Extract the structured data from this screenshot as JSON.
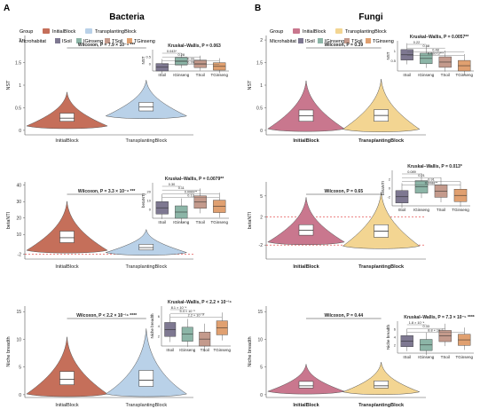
{
  "panels": [
    {
      "letter": "A",
      "title": "Bacteria",
      "legend": {
        "group_title": "Group",
        "groups": [
          "InitialBlock",
          "TransplantingBlock"
        ],
        "micro_title": "Microhabitat",
        "micro": [
          "ISoil",
          "IGinseng",
          "TSoil",
          "TGinseng"
        ]
      }
    },
    {
      "letter": "B",
      "title": "Fungi",
      "legend": {
        "group_title": "Group",
        "groups": [
          "InitialBlock",
          "TransplantingBlock"
        ],
        "micro_title": "Microhabitat",
        "micro": [
          "ISoil",
          "IGinseng",
          "TSoil",
          "TGinseng"
        ]
      }
    }
  ],
  "colors": {
    "bac_initial": "#c56f5a",
    "bac_trans": "#b9d1e8",
    "fun_initial": "#c9778e",
    "fun_trans": "#f3d592",
    "isoil": "#7e7891",
    "iginseng": "#8cb5a7",
    "tsoil": "#c49a8c",
    "tginseng": "#e0a070",
    "ref_line": "#e23b3b"
  },
  "chart_data": [
    {
      "type": "violin",
      "panel": "Bacteria",
      "ylabel": "NST",
      "categories": [
        "InitialBlock",
        "TransplantingBlock"
      ],
      "yticks": [
        0.0,
        0.5,
        1.0,
        1.5,
        2.0
      ],
      "ylim": [
        -0.1,
        2.1
      ],
      "medians": [
        0.27,
        0.52
      ],
      "box_q1": [
        0.2,
        0.43
      ],
      "box_q3": [
        0.38,
        0.62
      ],
      "test": "Wilcoxon, P = 7.9 × 10⁻⁴ ***",
      "inset": {
        "type": "box",
        "ylabel": "NST",
        "test": "Kruskal–Wallis, P = 0.063",
        "categories": [
          "ISoil",
          "IGinseng",
          "TSoil",
          "TGinseng"
        ],
        "yticks": [
          0.0,
          0.5
        ],
        "medians": [
          0.3,
          0.38,
          0.55,
          0.48
        ],
        "pairs": [
          "0.043*",
          "0.28",
          "0.33",
          "0.39"
        ]
      }
    },
    {
      "type": "violin",
      "panel": "Bacteria",
      "ylabel": "betaNTI",
      "categories": [
        "InitialBlock",
        "TransplantingBlock"
      ],
      "yticks": [
        -2,
        10,
        20,
        30,
        40
      ],
      "ylim": [
        -5,
        42
      ],
      "medians": [
        8,
        2
      ],
      "box_q1": [
        5,
        0.5
      ],
      "box_q3": [
        12,
        4
      ],
      "ref_line": -2,
      "test": "Wilcoxon, P = 3.3 × 10⁻⁴ ***",
      "inset": {
        "type": "box",
        "ylabel": "betaNTI",
        "test": "Kruskal–Wallis, P = 0.0079**",
        "categories": [
          "ISoil",
          "IGinseng",
          "TSoil",
          "TGinseng"
        ],
        "yticks": [
          0,
          10,
          20
        ],
        "medians": [
          7,
          5,
          2,
          1
        ],
        "pairs": [
          "0.30",
          "0.11",
          "0.0069**",
          "0.13"
        ]
      }
    },
    {
      "type": "violin",
      "panel": "Bacteria",
      "ylabel": "Niche breadth",
      "categories": [
        "InitialBlock",
        "TransplantingBlock"
      ],
      "yticks": [
        0,
        5,
        10,
        15
      ],
      "ylim": [
        -0.5,
        16
      ],
      "medians": [
        2.8,
        2.6
      ],
      "box_q1": [
        1.8,
        1.5
      ],
      "box_q3": [
        4.2,
        4.4
      ],
      "test": "Wilcoxon, P < 2.2 × 10⁻¹⁶ ****",
      "inset": {
        "type": "box",
        "ylabel": "Niche breadth",
        "test": "Kruskal–Wallis, P < 2.2 × 10⁻¹⁶",
        "categories": [
          "ISoil",
          "IGinseng",
          "TSoil",
          "TGinseng"
        ],
        "yticks": [
          2,
          4,
          6
        ],
        "medians": [
          2.6,
          2.8,
          2.4,
          2.7
        ],
        "pairs": [
          "8.1 × 10⁻⁴",
          "5.4 × 10⁻⁶",
          "2.2 × 10⁻¹⁶"
        ]
      }
    },
    {
      "type": "violin",
      "panel": "Fungi",
      "ylabel": "NST",
      "categories": [
        "InitialBlock",
        "TransplantingBlock"
      ],
      "yticks": [
        0.0,
        0.5,
        1.0,
        1.5,
        2.0
      ],
      "ylim": [
        -0.1,
        2.1
      ],
      "medians": [
        0.32,
        0.33
      ],
      "box_q1": [
        0.2,
        0.2
      ],
      "box_q3": [
        0.45,
        0.46
      ],
      "test": "Wilcoxon, P = 0.39",
      "inset": {
        "type": "box",
        "ylabel": "NST",
        "test": "Kruskal–Wallis, P = 0.0057**",
        "categories": [
          "ISoil",
          "IGinseng",
          "TSoil",
          "TGinseng"
        ],
        "yticks": [
          0.5,
          1.0
        ],
        "medians": [
          0.45,
          0.35,
          0.55,
          0.25
        ],
        "pairs": [
          "0.22",
          "0.68",
          "0.48",
          "0.00073***"
        ]
      }
    },
    {
      "type": "violin",
      "panel": "Fungi",
      "ylabel": "betaNTI",
      "categories": [
        "InitialBlock",
        "TransplantingBlock"
      ],
      "yticks": [
        -2,
        2,
        5
      ],
      "ylim": [
        -4,
        7
      ],
      "medians": [
        0.1,
        0.0
      ],
      "box_q1": [
        -0.6,
        -0.9
      ],
      "box_q3": [
        0.9,
        0.9
      ],
      "ref_line_values": [
        2,
        -2
      ],
      "test": "Wilcoxon, P = 0.65",
      "inset": {
        "type": "box",
        "ylabel": "betaNTI",
        "test": "Kruskal–Wallis, P = 0.013*",
        "categories": [
          "ISoil",
          "IGinseng",
          "TSoil",
          "TGinseng"
        ],
        "yticks": [
          -2,
          0,
          2
        ],
        "medians": [
          -0.2,
          0.5,
          -0.5,
          1.0
        ],
        "pairs": [
          "0.089",
          "0.21",
          "0.91",
          "0.0088**"
        ]
      }
    },
    {
      "type": "violin",
      "panel": "Fungi",
      "ylabel": "Niche breadth",
      "categories": [
        "InitialBlock",
        "TransplantingBlock"
      ],
      "yticks": [
        0,
        5,
        10,
        15
      ],
      "ylim": [
        -0.5,
        16
      ],
      "medians": [
        1.6,
        1.6
      ],
      "box_q1": [
        1.2,
        1.2
      ],
      "box_q3": [
        2.4,
        2.5
      ],
      "test": "Wilcoxon, P = 0.44",
      "inset": {
        "type": "box",
        "ylabel": "Niche breadth",
        "test": "Kruskal–Wallis, P = 7.3 × 10⁻⁵ ****",
        "categories": [
          "ISoil",
          "IGinseng",
          "TSoil",
          "TGinseng"
        ],
        "yticks": [
          2,
          4,
          6
        ],
        "medians": [
          1.7,
          1.6,
          1.8,
          1.6
        ],
        "pairs": [
          "1.8 × 10⁻⁴",
          "0.33",
          "8.8 × 10⁻⁶"
        ]
      }
    }
  ]
}
